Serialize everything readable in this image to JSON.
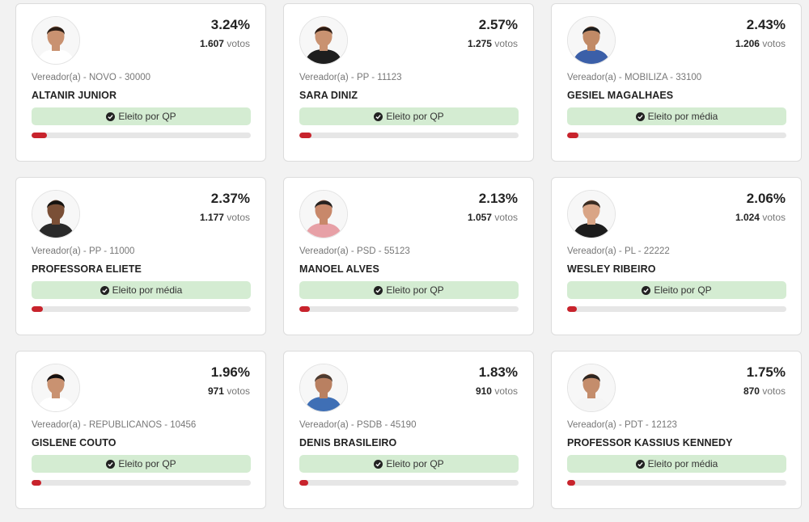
{
  "cards": [
    {
      "pct": "3.24%",
      "votes_num": "1.607",
      "votes_label": "votos",
      "meta": "Vereador(a) - NOVO - 30000",
      "name": "ALTANIR JUNIOR",
      "status": "Eleito por QP",
      "progress": 0.0324,
      "skin": "#c99271",
      "hair": "#2a1c14",
      "shirt": "#ffffff"
    },
    {
      "pct": "2.57%",
      "votes_num": "1.275",
      "votes_label": "votos",
      "meta": "Vereador(a) - PP - 11123",
      "name": "SARA DINIZ",
      "status": "Eleito por QP",
      "progress": 0.0257,
      "skin": "#c99271",
      "hair": "#2b1a12",
      "shirt": "#1e1e1e"
    },
    {
      "pct": "2.43%",
      "votes_num": "1.206",
      "votes_label": "votos",
      "meta": "Vereador(a) - MOBILIZA - 33100",
      "name": "GESIEL MAGALHAES",
      "status": "Eleito por média",
      "progress": 0.0243,
      "skin": "#c18a66",
      "hair": "#1d1d1d",
      "shirt": "#3b5fa8"
    },
    {
      "pct": "2.37%",
      "votes_num": "1.177",
      "votes_label": "votos",
      "meta": "Vereador(a) - PP - 11000",
      "name": "PROFESSORA ELIETE",
      "status": "Eleito por média",
      "progress": 0.0237,
      "skin": "#7a4f36",
      "hair": "#161310",
      "shirt": "#2a2a2a"
    },
    {
      "pct": "2.13%",
      "votes_num": "1.057",
      "votes_label": "votos",
      "meta": "Vereador(a) - PSD - 55123",
      "name": "MANOEL ALVES",
      "status": "Eleito por QP",
      "progress": 0.0213,
      "skin": "#c8886a",
      "hair": "#262220",
      "shirt": "#e7a0a6"
    },
    {
      "pct": "2.06%",
      "votes_num": "1.024",
      "votes_label": "votos",
      "meta": "Vereador(a) - PL - 22222",
      "name": "WESLEY RIBEIRO",
      "status": "Eleito por QP",
      "progress": 0.0206,
      "skin": "#d9a586",
      "hair": "#3a2c22",
      "shirt": "#1c1c1c"
    },
    {
      "pct": "1.96%",
      "votes_num": "971",
      "votes_label": "votos",
      "meta": "Vereador(a) - REPUBLICANOS - 10456",
      "name": "GISLENE COUTO",
      "status": "Eleito por QP",
      "progress": 0.0196,
      "skin": "#c99271",
      "hair": "#141010",
      "shirt": "#ffffff"
    },
    {
      "pct": "1.83%",
      "votes_num": "910",
      "votes_label": "votos",
      "meta": "Vereador(a) - PSDB - 45190",
      "name": "DENIS BRASILEIRO",
      "status": "Eleito por QP",
      "progress": 0.0183,
      "skin": "#b98061",
      "hair": "#4b3a30",
      "shirt": "#3f6fb5"
    },
    {
      "pct": "1.75%",
      "votes_num": "870",
      "votes_label": "votos",
      "meta": "Vereador(a) - PDT - 12123",
      "name": "PROFESSOR KASSIUS KENNEDY",
      "status": "Eleito por média",
      "progress": 0.0175,
      "skin": "#c48d6c",
      "hair": "#2d2520",
      "shirt": "#f5f5f5"
    }
  ]
}
